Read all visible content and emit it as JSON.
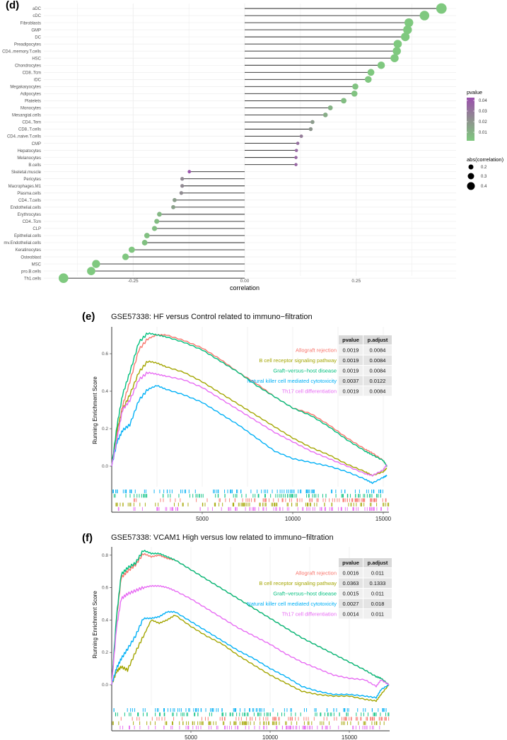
{
  "panels": {
    "d": {
      "label": "(d)"
    },
    "e": {
      "label": "(e)",
      "title": "GSE57338: HF versus Control related to immuno−filtration"
    },
    "f": {
      "label": "(f)",
      "title": "GSE57338: VCAM1 High versus low related to immuno−filtration"
    }
  },
  "colors": {
    "Allograft rejection": "#F8766D",
    "B cell receptor signaling pathway": "#A3A500",
    "Graft−versus−host disease": "#00BF7D",
    "Natural killer cell mediated cytotoxicity": "#00B0F6",
    "Th17 cell differentiation": "#E76BF3",
    "pvalue_low": "#7FC97F",
    "pvalue_high": "#9B4FAE"
  },
  "chart_data": [
    {
      "type": "scatter",
      "subtype": "lollipop",
      "panel": "(d)",
      "title": "",
      "xlabel": "correlation",
      "ylabel": "",
      "xlim": [
        -0.41,
        0.45
      ],
      "xticks": [
        "-0.25",
        "0.00",
        "0.25"
      ],
      "grid": true,
      "legend": {
        "color_title": "pvalue",
        "color_ticks": [
          "0.04",
          "0.03",
          "0.02",
          "0.01"
        ],
        "size_title": "abs(correlation)",
        "size_ticks": [
          "0.2",
          "0.3",
          "0.4"
        ],
        "position": "right"
      },
      "categories": [
        "aDC",
        "cDC",
        "Fibroblasts",
        "GMP",
        "DC",
        "Preadipocytes",
        "CD4..memory.T.cells",
        "HSC",
        "Chondrocytes",
        "CD8..Tcm",
        "iDC",
        "Megakaryocytes",
        "Adipocytes",
        "Platelets",
        "Monocytes",
        "Mesangial.cells",
        "CD4..Tem",
        "CD8..T.cells",
        "CD4..naive.T.cells",
        "CMP",
        "Hepatocytes",
        "Melanocytes",
        "B.cells",
        "Skeletal.muscle",
        "Pericytes",
        "Macrophages.M1",
        "Plasma.cells",
        "CD4..T.cells",
        "Endothelial.cells",
        "Erythrocytes",
        "CD4..Tcm",
        "CLP",
        "Epithelial.cells",
        "mv.Endothelial.cells",
        "Keratinocytes",
        "Osteoblast",
        "MSC",
        "pro.B.cells",
        "Th1.cells"
      ],
      "values": [
        0.441,
        0.403,
        0.368,
        0.365,
        0.36,
        0.343,
        0.341,
        0.336,
        0.306,
        0.283,
        0.277,
        0.248,
        0.246,
        0.222,
        0.192,
        0.181,
        0.152,
        0.148,
        0.127,
        0.119,
        0.116,
        0.115,
        0.115,
        -0.124,
        -0.14,
        -0.14,
        -0.142,
        -0.157,
        -0.16,
        -0.191,
        -0.197,
        -0.202,
        -0.219,
        -0.224,
        -0.253,
        -0.267,
        -0.333,
        -0.344,
        -0.406
      ],
      "pvalues": [
        0.0001,
        0.0001,
        0.0001,
        0.0001,
        0.0001,
        0.0001,
        0.0001,
        0.0001,
        0.0002,
        0.0005,
        0.0007,
        0.002,
        0.002,
        0.004,
        0.008,
        0.01,
        0.016,
        0.018,
        0.026,
        0.03,
        0.032,
        0.033,
        0.033,
        0.038,
        0.022,
        0.022,
        0.021,
        0.015,
        0.014,
        0.006,
        0.005,
        0.004,
        0.003,
        0.003,
        0.001,
        0.0008,
        0.0001,
        0.0001,
        0.0001
      ]
    },
    {
      "type": "line",
      "panel": "(e)",
      "title": "GSE57338: HF versus Control related to immuno−filtration",
      "xlabel": "",
      "ylabel": "Running Enrichment Score",
      "xlim": [
        0,
        15300
      ],
      "ylim": [
        -0.14,
        0.74
      ],
      "xticks": [
        "5000",
        "10000",
        "15000"
      ],
      "yticks": [
        "0.0",
        "0.2",
        "0.4",
        "0.6"
      ],
      "table": {
        "headers": [
          "pvalue",
          "p.adjust"
        ],
        "rows": [
          {
            "set": "Allograft rejection",
            "pvalue": "0.0019",
            "p_adjust": "0.0084"
          },
          {
            "set": "B cell receptor signaling pathway",
            "pvalue": "0.0019",
            "p_adjust": "0.0084"
          },
          {
            "set": "Graft−versus−host disease",
            "pvalue": "0.0019",
            "p_adjust": "0.0084"
          },
          {
            "set": "Natural killer cell mediated cytotoxicity",
            "pvalue": "0.0037",
            "p_adjust": "0.0122"
          },
          {
            "set": "Th17 cell differentiation",
            "pvalue": "0.0019",
            "p_adjust": "0.0084"
          }
        ]
      },
      "x": [
        0,
        300,
        600,
        1000,
        1500,
        2000,
        2500,
        3000,
        4000,
        5000,
        6000,
        7000,
        8000,
        9000,
        10000,
        11000,
        12000,
        13000,
        14000,
        14400,
        15000,
        15200
      ],
      "series": [
        {
          "name": "Allograft rejection",
          "values": [
            0,
            0.18,
            0.32,
            0.45,
            0.62,
            0.68,
            0.7,
            0.7,
            0.67,
            0.63,
            0.57,
            0.5,
            0.44,
            0.37,
            0.31,
            0.28,
            0.22,
            0.15,
            0.09,
            0.07,
            0.03,
            0.0
          ]
        },
        {
          "name": "B cell receptor signaling pathway",
          "values": [
            0,
            0.2,
            0.3,
            0.38,
            0.5,
            0.56,
            0.55,
            0.53,
            0.5,
            0.45,
            0.39,
            0.33,
            0.27,
            0.21,
            0.15,
            0.1,
            0.06,
            0.01,
            -0.03,
            -0.05,
            -0.03,
            -0.01
          ]
        },
        {
          "name": "Graft−versus−host disease",
          "values": [
            0,
            0.22,
            0.38,
            0.5,
            0.66,
            0.71,
            0.7,
            0.69,
            0.66,
            0.62,
            0.56,
            0.5,
            0.43,
            0.37,
            0.31,
            0.27,
            0.21,
            0.14,
            0.08,
            0.06,
            0.03,
            0.0
          ]
        },
        {
          "name": "Natural killer cell mediated cytotoxicity",
          "values": [
            0,
            0.13,
            0.19,
            0.22,
            0.35,
            0.41,
            0.43,
            0.41,
            0.38,
            0.34,
            0.28,
            0.22,
            0.15,
            0.08,
            0.04,
            0.02,
            0.0,
            -0.03,
            -0.07,
            -0.09,
            -0.06,
            -0.05
          ]
        },
        {
          "name": "Th17 cell differentiation",
          "values": [
            0,
            0.15,
            0.3,
            0.35,
            0.46,
            0.5,
            0.49,
            0.48,
            0.46,
            0.42,
            0.36,
            0.3,
            0.24,
            0.18,
            0.13,
            0.08,
            0.04,
            0.0,
            -0.04,
            -0.05,
            -0.02,
            0.01
          ]
        }
      ]
    },
    {
      "type": "line",
      "panel": "(f)",
      "title": "GSE57338: VCAM1 High versus low related to immuno−filtration",
      "xlabel": "",
      "ylabel": "Running Enrichment Score",
      "xlim": [
        0,
        17500
      ],
      "ylim": [
        -0.14,
        0.86
      ],
      "xticks": [
        "5000",
        "10000",
        "15000"
      ],
      "yticks": [
        "0.0",
        "0.2",
        "0.4",
        "0.6",
        "0.8"
      ],
      "table": {
        "headers": [
          "pvalue",
          "p.adjust"
        ],
        "rows": [
          {
            "set": "Allograft rejection",
            "pvalue": "0.0016",
            "p_adjust": "0.011"
          },
          {
            "set": "B cell receptor signaling pathway",
            "pvalue": "0.0363",
            "p_adjust": "0.1333"
          },
          {
            "set": "Graft−versus−host disease",
            "pvalue": "0.0015",
            "p_adjust": "0.011"
          },
          {
            "set": "Natural killer cell mediated cytotoxicity",
            "pvalue": "0.0027",
            "p_adjust": "0.018"
          },
          {
            "set": "Th17 cell differentiation",
            "pvalue": "0.0014",
            "p_adjust": "0.011"
          }
        ]
      },
      "x": [
        0,
        300,
        600,
        1000,
        1500,
        2000,
        2500,
        3000,
        3500,
        4000,
        5000,
        6000,
        7000,
        8000,
        9000,
        10000,
        11000,
        12000,
        13000,
        14000,
        15000,
        16000,
        16700,
        17000,
        17500
      ],
      "series": [
        {
          "name": "Allograft rejection",
          "values": [
            0,
            0.4,
            0.66,
            0.7,
            0.74,
            0.81,
            0.79,
            0.8,
            0.78,
            0.77,
            0.71,
            0.65,
            0.59,
            0.53,
            0.47,
            0.41,
            0.35,
            0.29,
            0.24,
            0.19,
            0.14,
            0.09,
            0.05,
            0.04,
            0.0
          ]
        },
        {
          "name": "B cell receptor signaling pathway",
          "values": [
            0,
            0.08,
            0.11,
            0.09,
            0.2,
            0.3,
            0.4,
            0.38,
            0.4,
            0.43,
            0.36,
            0.3,
            0.25,
            0.18,
            0.12,
            0.06,
            0.01,
            -0.04,
            -0.06,
            -0.07,
            -0.07,
            -0.09,
            -0.1,
            -0.06,
            0.0
          ]
        },
        {
          "name": "Graft−versus−host disease",
          "values": [
            0,
            0.42,
            0.68,
            0.72,
            0.75,
            0.83,
            0.81,
            0.81,
            0.79,
            0.77,
            0.71,
            0.65,
            0.59,
            0.53,
            0.47,
            0.41,
            0.35,
            0.29,
            0.24,
            0.19,
            0.14,
            0.09,
            0.05,
            0.04,
            0.0
          ]
        },
        {
          "name": "Natural killer cell mediated cytotoxicity",
          "values": [
            0,
            0.1,
            0.16,
            0.22,
            0.3,
            0.41,
            0.41,
            0.42,
            0.45,
            0.45,
            0.39,
            0.33,
            0.27,
            0.21,
            0.16,
            0.1,
            0.05,
            -0.01,
            -0.04,
            -0.06,
            -0.06,
            -0.07,
            -0.08,
            -0.03,
            0.0
          ]
        },
        {
          "name": "Th17 cell differentiation",
          "values": [
            0,
            0.35,
            0.53,
            0.56,
            0.58,
            0.6,
            0.61,
            0.61,
            0.6,
            0.58,
            0.53,
            0.47,
            0.41,
            0.35,
            0.3,
            0.25,
            0.19,
            0.14,
            0.1,
            0.06,
            0.04,
            0.03,
            -0.01,
            0.03,
            0.0
          ]
        }
      ]
    }
  ]
}
